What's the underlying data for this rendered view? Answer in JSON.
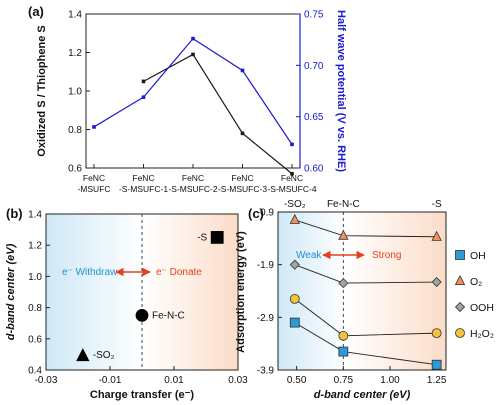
{
  "colors": {
    "left_series": "#1a1a1a",
    "right_series": "#1a1ad0",
    "right_axis": "#1a1ad0",
    "blue_region": "#cfe8f7",
    "orange_region": "#fbdcc8",
    "withdraw_text": "#1f8fd6",
    "donate_text": "#e8401c",
    "oh": "#2a9ad8",
    "o2": "#f0925a",
    "ooh": "#a3a3a3",
    "h2o2": "#f5c33b"
  },
  "chart_data": [
    {
      "panel": "(a)",
      "type": "line",
      "categories": [
        "FeNC -MSUFC",
        "FeNC -S-MSUFC-1",
        "FeNC -S-MSUFC-2",
        "FeNC -S-MSUFC-3",
        "FeNC -S-MSUFC-4"
      ],
      "category_lines": [
        [
          "FeNC",
          "-MSUFC"
        ],
        [
          "FeNC",
          "-S-MSUFC-1"
        ],
        [
          "FeNC",
          "-S-MSUFC-2"
        ],
        [
          "FeNC",
          "-S-MSUFC-3"
        ],
        [
          "FeNC",
          "-S-MSUFC-4"
        ]
      ],
      "ylabel_left": "Oxidized S / Thiophene S",
      "ylabel_right": "Half wave potential (V vs. RHE)",
      "ylim_left": [
        0.6,
        1.4
      ],
      "ylim_right": [
        0.6,
        0.75
      ],
      "yticks_left": [
        "0.6",
        "0.8",
        "1.0",
        "1.2",
        "1.4"
      ],
      "yticks_right": [
        "0.60",
        "0.65",
        "0.70",
        "0.75"
      ],
      "series": [
        {
          "axis": "left",
          "values": [
            null,
            1.05,
            1.19,
            0.78,
            0.57
          ]
        },
        {
          "axis": "right",
          "values": [
            0.64,
            0.669,
            0.726,
            0.695,
            0.623
          ]
        }
      ]
    },
    {
      "panel": "(b)",
      "type": "scatter",
      "xlabel": "Charge transfer (e⁻)",
      "ylabel": "d-band center (eV)",
      "xlim": [
        -0.03,
        0.03
      ],
      "ylim": [
        0.4,
        1.4
      ],
      "xticks": [
        "-0.03",
        "-0.01",
        "0.01",
        "0.03"
      ],
      "yticks": [
        "0.4",
        "0.6",
        "0.8",
        "1.0",
        "1.2",
        "1.4"
      ],
      "points": [
        {
          "label": "-S",
          "x": 0.0235,
          "y": 1.25,
          "marker": "square"
        },
        {
          "label": "Fe-N-C",
          "x": 0.0,
          "y": 0.75,
          "marker": "circle"
        },
        {
          "label": "-SO₂",
          "x": -0.0185,
          "y": 0.49,
          "marker": "triangle"
        }
      ],
      "annotations": {
        "withdraw": "e⁻ Withdraw",
        "donate": "e⁻ Donate"
      },
      "dashed_line_x": 0.0
    },
    {
      "panel": "(c)",
      "type": "line",
      "xlabel": "d-band center (eV)",
      "ylabel": "Adsorption energy (eV)",
      "xlim": [
        0.4,
        1.3
      ],
      "ylim": [
        -3.9,
        -0.9
      ],
      "xticks": [
        "0.50",
        "0.75",
        "1.00",
        "1.25"
      ],
      "yticks": [
        "-0.9",
        "-1.9",
        "-2.9",
        "-3.9"
      ],
      "top_labels": [
        "-SO₂",
        "Fe-N-C",
        "-S"
      ],
      "annotations": {
        "weak": "Weak",
        "strong": "Strong"
      },
      "dashed_line_x": 0.75,
      "x": [
        0.49,
        0.75,
        1.25
      ],
      "series": [
        {
          "name": "OH",
          "values": [
            -3.0,
            -3.55,
            -3.8
          ],
          "marker": "square"
        },
        {
          "name": "O₂",
          "values": [
            -1.05,
            -1.35,
            -1.37
          ],
          "marker": "triangle"
        },
        {
          "name": "OOH",
          "values": [
            -1.9,
            -2.25,
            -2.23
          ],
          "marker": "diamond"
        },
        {
          "name": "H₂O₂",
          "values": [
            -2.55,
            -3.25,
            -3.2
          ],
          "marker": "circle"
        }
      ]
    }
  ]
}
